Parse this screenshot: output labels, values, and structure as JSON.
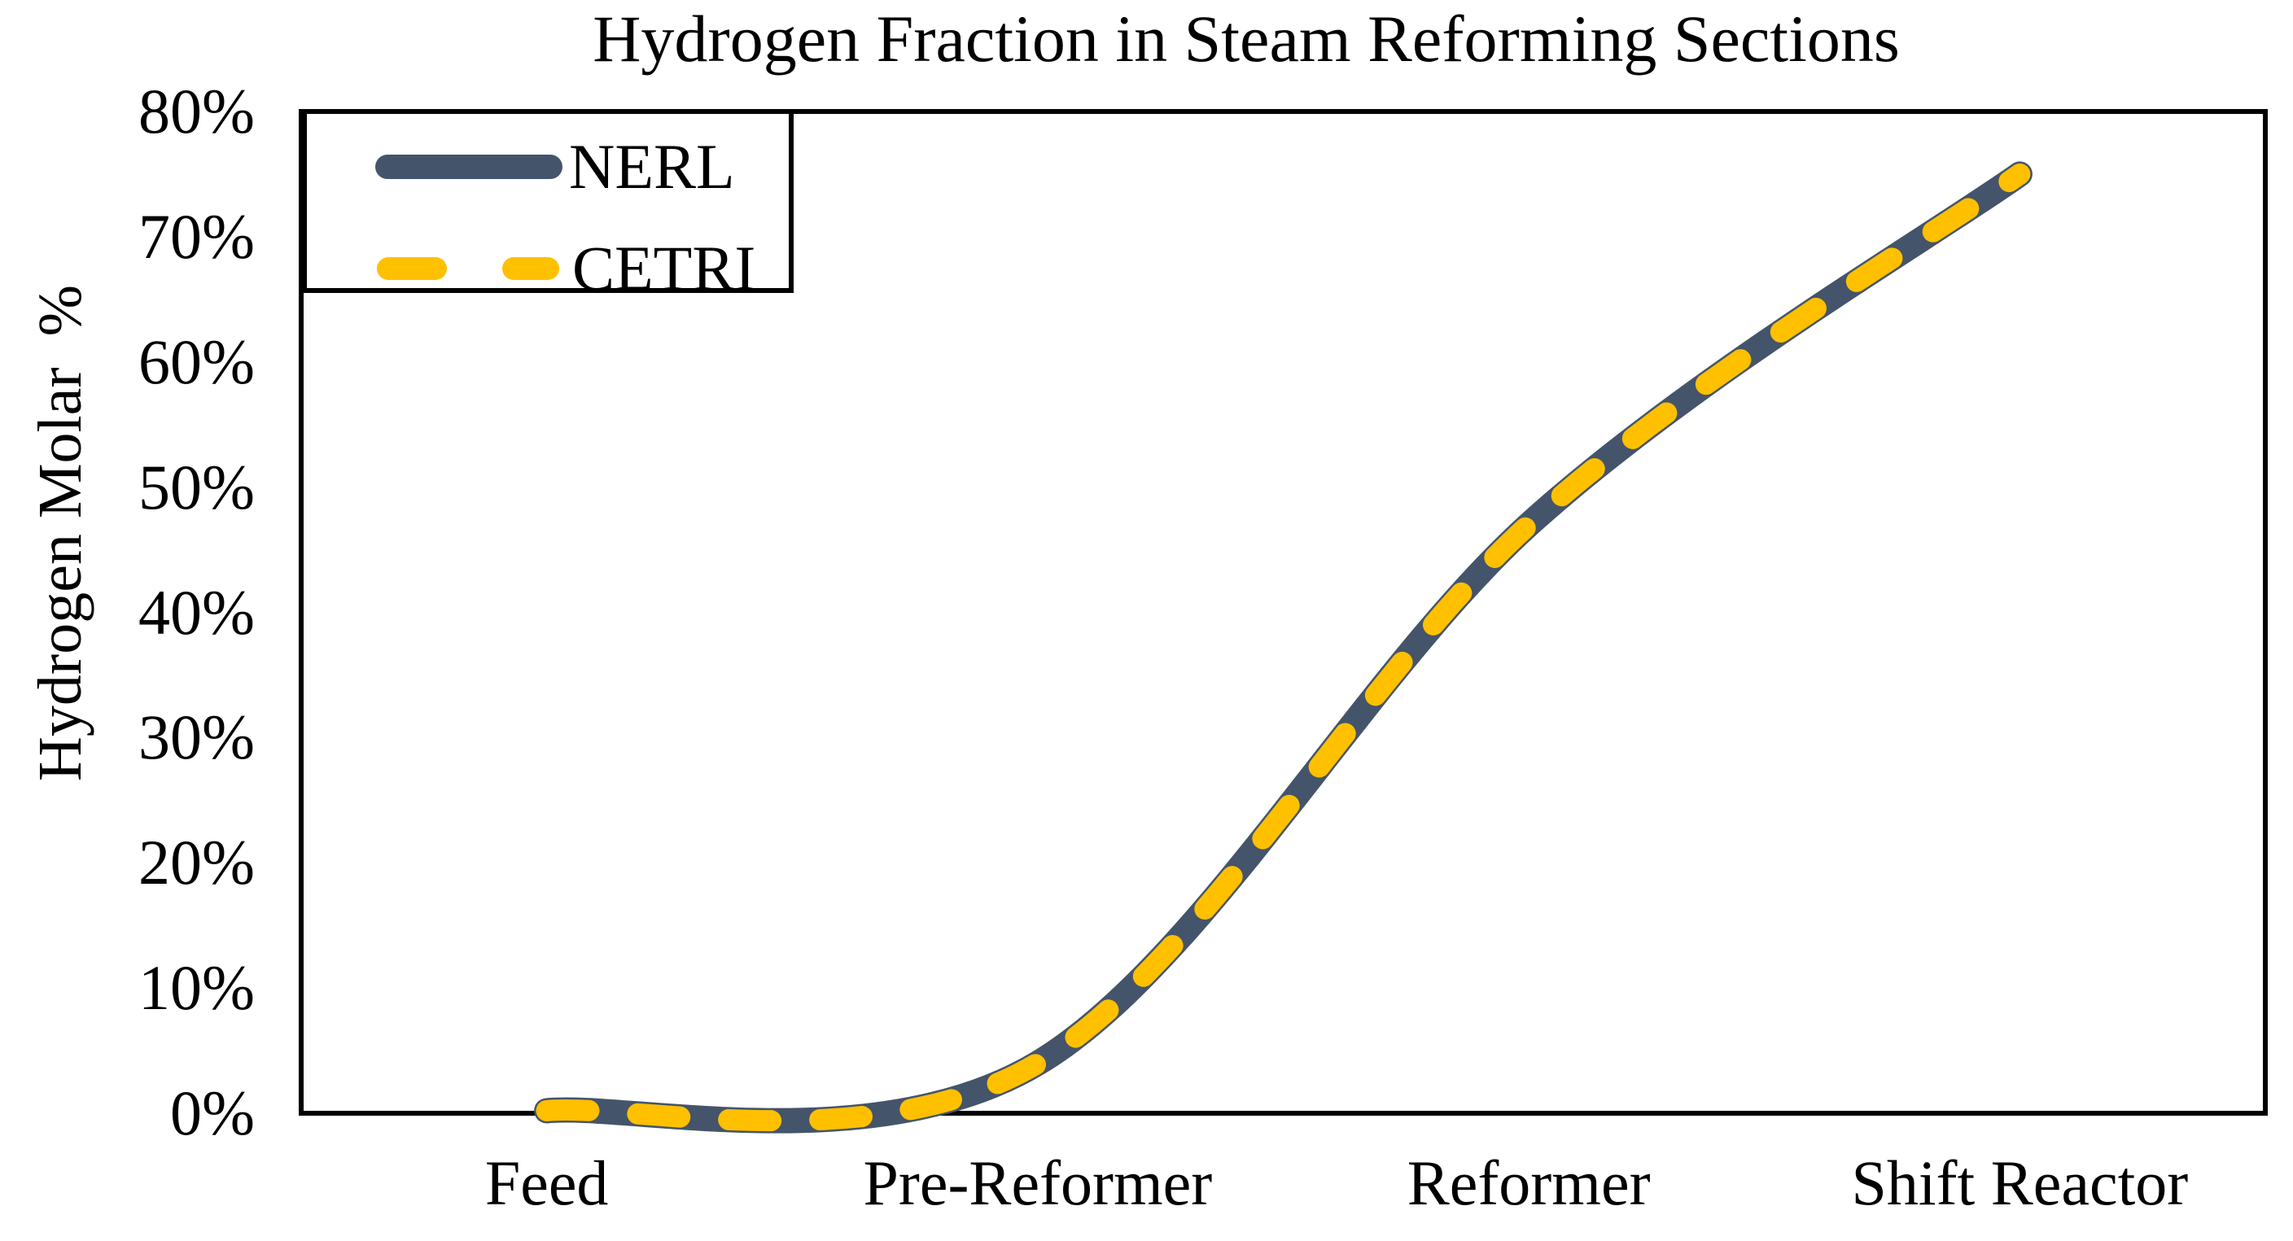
{
  "page": {
    "background": "#FFFFFF",
    "text_color": "#000000",
    "axis_color": "#000000"
  },
  "chart_data": {
    "type": "line",
    "title": "Hydrogen Fraction in Steam Reforming Sections",
    "xlabel": "",
    "ylabel": "Hydrogen Molar  %",
    "categories": [
      "Feed",
      "Pre-Reformer",
      "Reformer",
      "Shift Reactor"
    ],
    "series": [
      {
        "name": "NERL",
        "color": "#44546A",
        "line_style": "solid",
        "line_width": 31,
        "dash_pattern": null,
        "values": [
          0.2,
          4,
          47,
          75
        ]
      },
      {
        "name": "CETRI",
        "color": "#FFC000",
        "line_style": "dashed",
        "line_width": 26,
        "dash_pattern": "52 60",
        "values": [
          0.2,
          4,
          47,
          75
        ]
      }
    ],
    "smoothed": true,
    "markers": false,
    "ylim": [
      0,
      80
    ],
    "ytick_step": 10,
    "ytick_labels": [
      "0%",
      "10%",
      "20%",
      "30%",
      "40%",
      "50%",
      "60%",
      "70%",
      "80%"
    ],
    "grid": false,
    "plot_border": true,
    "legend_position": "top-left"
  }
}
